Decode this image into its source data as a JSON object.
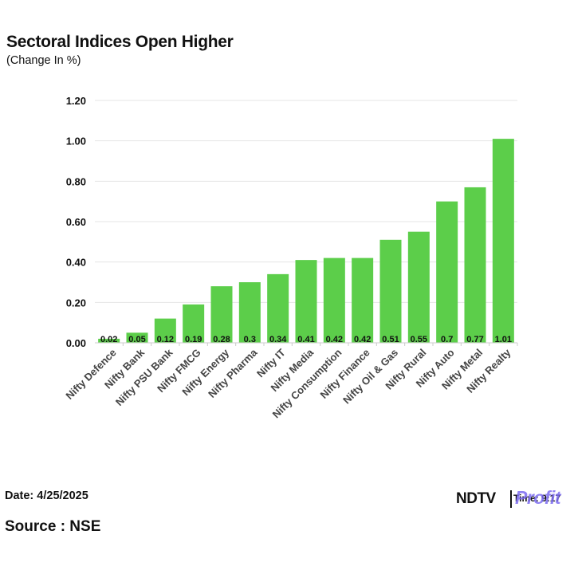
{
  "title": "Sectoral Indices Open Higher",
  "subtitle": "(Change In %)",
  "footer": {
    "date": "Date: 4/25/2025",
    "source": "Source : NSE"
  },
  "brand": {
    "ndtv": "NDTV",
    "time": "Time: 9:17",
    "profit": "Profit"
  },
  "colors": {
    "bar": "#5cce4a",
    "grid": "#e4e4e4",
    "text": "#111111"
  },
  "chart_data": {
    "type": "bar",
    "title": "Sectoral Indices Open Higher",
    "ylabel": "(Change In %)",
    "xlabel": "",
    "ylim": [
      0,
      1.2
    ],
    "yticks": [
      "0.00",
      "0.20",
      "0.40",
      "0.60",
      "0.80",
      "1.00",
      "1.20"
    ],
    "grid": true,
    "categories": [
      "Nifty Defence",
      "Nifty Bank",
      "Nifty PSU Bank",
      "Nifty FMCG",
      "Nifty Energy",
      "Nifty Pharma",
      "Nifty IT",
      "Nifty Media",
      "Nifty Consumption",
      "Nifty Finance",
      "Nifty Oil & Gas",
      "Nifty Rural",
      "Nifty Auto",
      "Nifty Metal",
      "Nifty Realty"
    ],
    "values": [
      0.02,
      0.05,
      0.12,
      0.19,
      0.28,
      0.3,
      0.34,
      0.41,
      0.42,
      0.42,
      0.51,
      0.55,
      0.7,
      0.77,
      1.01
    ],
    "data_labels": [
      "0.02",
      "0.05",
      "0.12",
      "0.19",
      "0.28",
      "0.3",
      "0.34",
      "0.41",
      "0.42",
      "0.42",
      "0.51",
      "0.55",
      "0.7",
      "0.77",
      "1.01"
    ]
  }
}
